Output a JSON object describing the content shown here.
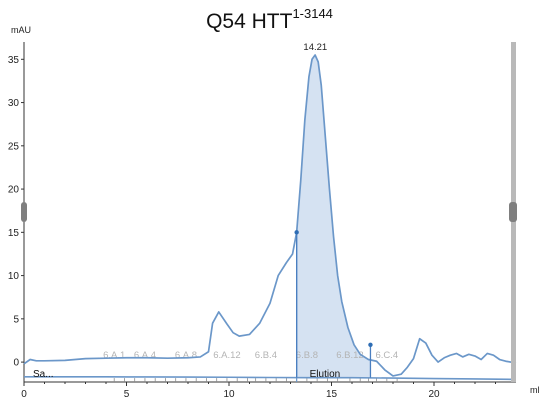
{
  "chart_data": {
    "type": "line",
    "title": "Q54 HTT",
    "title_superscript": "1-3144",
    "ylabel": "mAU",
    "xlabel": "ml",
    "xlim": [
      0,
      24
    ],
    "ylim": [
      -2.3,
      37
    ],
    "x_ticks": [
      0,
      5,
      10,
      15,
      20
    ],
    "y_ticks": [
      0,
      5,
      10,
      15,
      20,
      25,
      30,
      35
    ],
    "grid": false,
    "line_color": "#6b97c9",
    "fill_color": "#d5e2f2",
    "peak": {
      "x": 14.21,
      "y": 35.5,
      "label": "14.21"
    },
    "selected_range": [
      13.3,
      16.9
    ],
    "series": [
      {
        "x": [
          0,
          0.3,
          0.6,
          1,
          2,
          3,
          4,
          5,
          6,
          7,
          8,
          8.6,
          9,
          9.2,
          9.5,
          9.9,
          10.2,
          10.5,
          11,
          11.5,
          12,
          12.4,
          12.8,
          13.1,
          13.3,
          13.5,
          13.7,
          13.9,
          14.05,
          14.2,
          14.35,
          14.5,
          14.7,
          14.9,
          15.1,
          15.3,
          15.5,
          15.8,
          16.1,
          16.4,
          16.8,
          17.2,
          17.6,
          18.0,
          18.4,
          18.7,
          19.0,
          19.3,
          19.6,
          19.9,
          20.2,
          20.5,
          20.8,
          21.1,
          21.4,
          21.7,
          22.0,
          22.3,
          22.6,
          22.9,
          23.2,
          23.5,
          24.0
        ],
        "y": [
          -0.2,
          0.3,
          0.15,
          0.15,
          0.2,
          0.4,
          0.45,
          0.5,
          0.5,
          0.45,
          0.5,
          0.6,
          1.2,
          4.5,
          5.8,
          4.4,
          3.4,
          3.0,
          3.2,
          4.5,
          6.8,
          10.0,
          11.5,
          12.5,
          15.0,
          21.0,
          28.0,
          33.0,
          35.0,
          35.5,
          34.7,
          32.0,
          26.0,
          20.0,
          14.5,
          10.0,
          7.0,
          4.0,
          2.0,
          0.9,
          0.3,
          0.1,
          -0.9,
          -1.6,
          -1.4,
          -0.6,
          0.4,
          2.7,
          2.2,
          0.8,
          0.0,
          0.5,
          0.8,
          1.0,
          0.6,
          0.9,
          0.7,
          0.3,
          1.0,
          0.8,
          0.3,
          0.1,
          -0.1
        ]
      },
      {
        "x": [
          0,
          2,
          4,
          6,
          8,
          10,
          12,
          14,
          16,
          18,
          20,
          22,
          24
        ],
        "y": [
          -1.7,
          -1.7,
          -1.7,
          -1.72,
          -1.73,
          -1.75,
          -1.78,
          -1.8,
          -1.8,
          -1.85,
          -1.9,
          -1.95,
          -2.0
        ]
      }
    ],
    "fractions": {
      "labels": [
        "6.A.1",
        "6.A.4",
        "6.A.8",
        "6.A.12",
        "6.B.4",
        "6.B.8",
        "6.B.12",
        "6.C.4"
      ],
      "label_x": [
        4.4,
        5.9,
        7.9,
        9.9,
        11.8,
        13.8,
        15.9,
        17.7
      ],
      "tick_x": [
        4.4,
        4.9,
        5.4,
        5.9,
        6.4,
        6.9,
        7.4,
        7.9,
        8.4,
        8.9,
        9.4,
        9.9,
        10.4,
        10.9,
        11.3,
        11.8,
        12.3,
        12.8,
        13.3,
        13.8,
        14.3,
        14.8,
        15.3,
        15.9,
        16.4,
        16.8,
        17.2,
        17.7,
        18.2
      ]
    },
    "events": {
      "sample_label": "Sa...",
      "elution_label": "Elution",
      "elution_x": 13.3
    },
    "markers": [
      13.3,
      16.9
    ]
  }
}
